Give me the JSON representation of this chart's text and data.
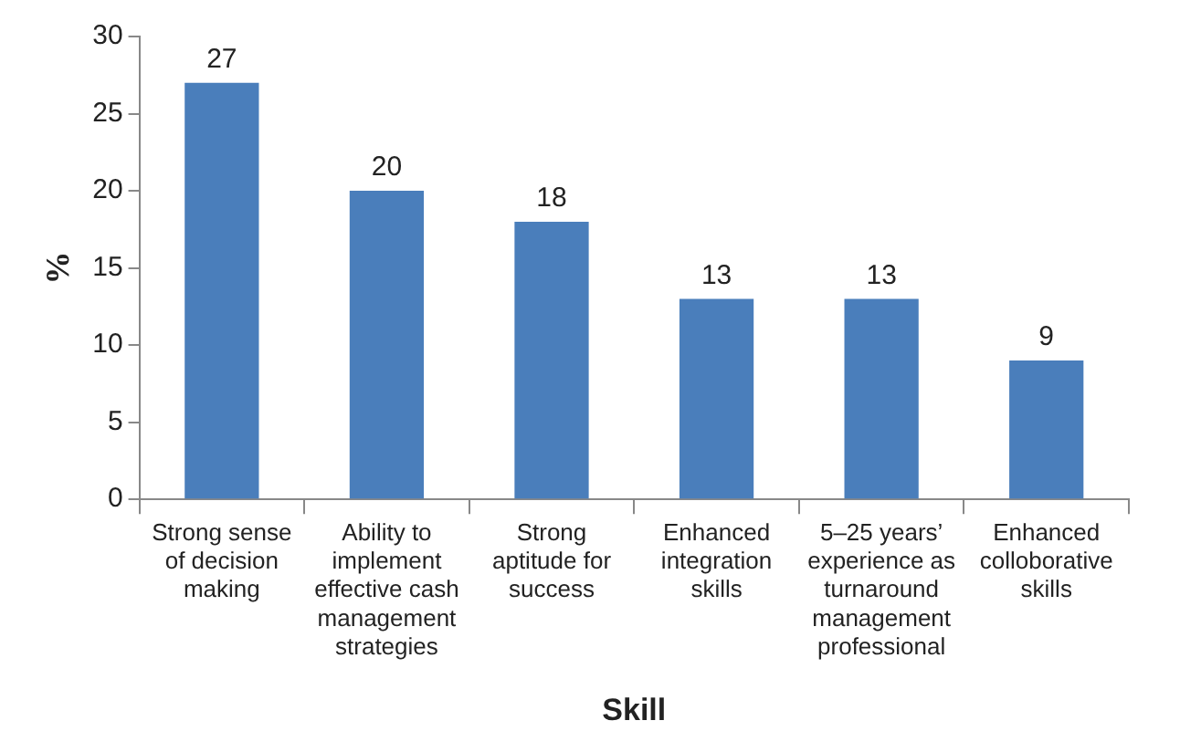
{
  "chart_data": {
    "type": "bar",
    "xlabel": "Skill",
    "ylabel": "%",
    "categories": [
      "Strong sense of decision making",
      "Ability to implement effective cash management strategies",
      "Strong aptitude for success",
      "Enhanced integration skills",
      "5–25 years’ experience as turnaround management professional",
      "Enhanced colloborative skills"
    ],
    "values": [
      27,
      20,
      18,
      13,
      13,
      9
    ],
    "color": "#4a7ebb",
    "ylim": [
      0,
      30
    ],
    "yticks": [
      0,
      5,
      10,
      15,
      20,
      25,
      30
    ],
    "grid": false,
    "legend": false,
    "data_labels": true
  }
}
